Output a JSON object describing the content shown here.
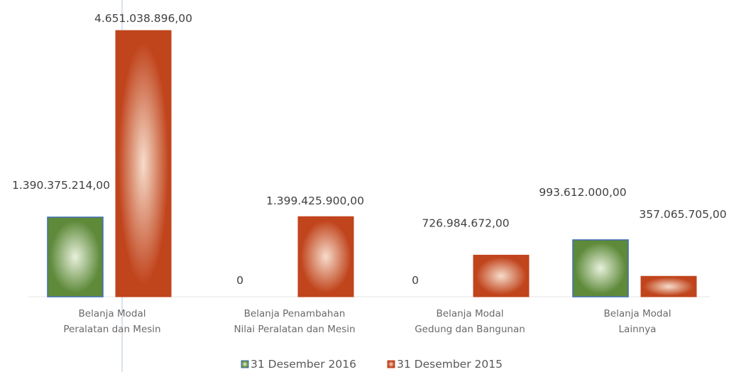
{
  "chart_data": {
    "type": "bar",
    "categories": [
      [
        "Belanja Modal",
        "Peralatan dan Mesin"
      ],
      [
        "Belanja Penambahan",
        "Nilai Peralatan dan Mesin"
      ],
      [
        "Belanja Modal",
        "Gedung dan Bangunan"
      ],
      [
        "Belanja Modal",
        "Lainnya"
      ]
    ],
    "series": [
      {
        "name": "31 Desember 2016",
        "values": [
          1390375214,
          0,
          0,
          993612000
        ],
        "labels": [
          "1.390.375.214,00",
          "0",
          "0",
          "993.612.000,00"
        ],
        "color": "#5e8a3a",
        "highlight": "#e8f0dc"
      },
      {
        "name": "31 Desember 2015",
        "values": [
          4651038896,
          1399425900,
          726984672,
          357065705
        ],
        "labels": [
          "4.651.038.896,00",
          "1.399.425.900,00",
          "726.984.672,00",
          "357.065.705,00"
        ],
        "color": "#c0441c",
        "highlight": "#f6dccb"
      }
    ],
    "ylim": [
      0,
      4651038896
    ],
    "grid": false,
    "legend_position": "bottom"
  }
}
